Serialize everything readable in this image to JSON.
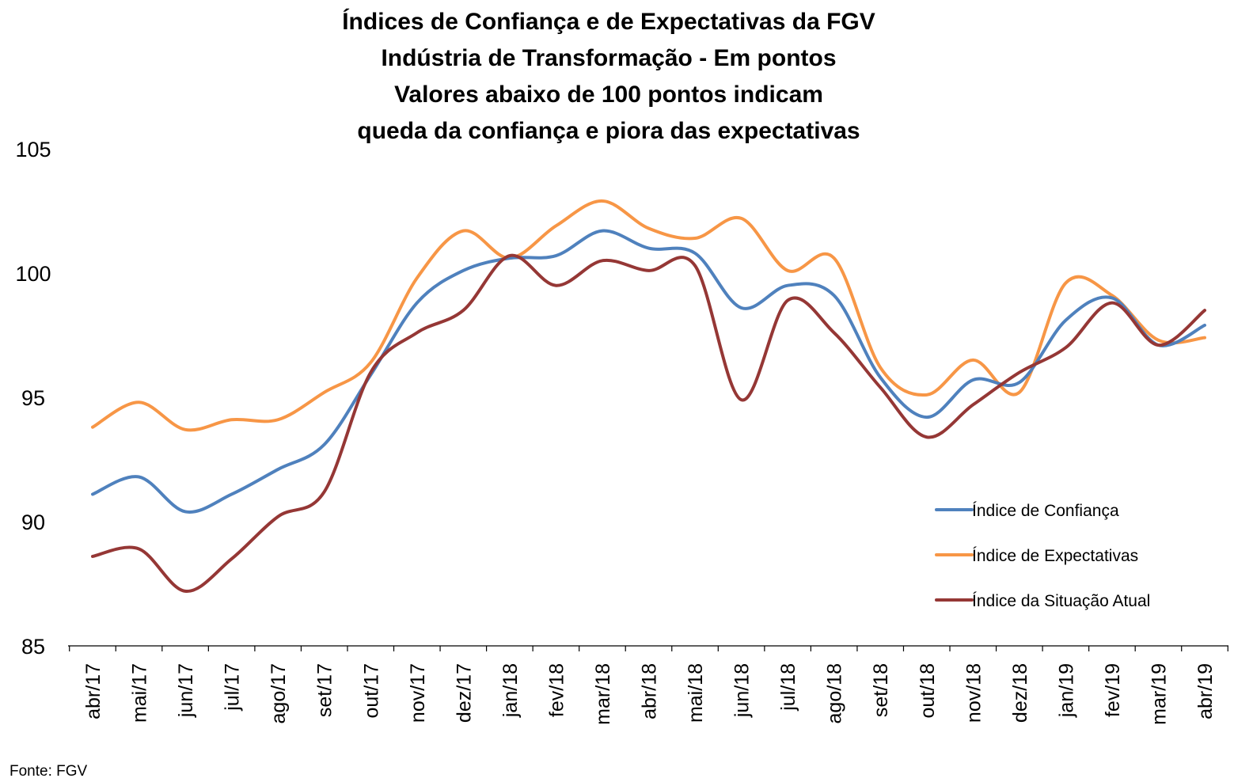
{
  "chart_data": {
    "type": "line",
    "title_lines": [
      "Índices de Confiança e de Expectativas da FGV",
      "Indústria de Transformação - Em pontos",
      "Valores abaixo de 100 pontos indicam",
      "queda da confiança e piora das expectativas"
    ],
    "categories": [
      "abr/17",
      "mai/17",
      "jun/17",
      "jul/17",
      "ago/17",
      "set/17",
      "out/17",
      "nov/17",
      "dez/17",
      "jan/18",
      "fev/18",
      "mar/18",
      "abr/18",
      "mai/18",
      "jun/18",
      "jul/18",
      "ago/18",
      "set/18",
      "out/18",
      "nov/18",
      "dez/18",
      "jan/19",
      "fev/19",
      "mar/19",
      "abr/19"
    ],
    "y_ticks": [
      "105",
      "100",
      "95",
      "90",
      "85"
    ],
    "ylim": [
      85,
      105
    ],
    "grid": false,
    "legend_position": "right",
    "series": [
      {
        "name": "Índice de Confiança",
        "color": "#4F81BD",
        "values": [
          91.1,
          91.8,
          90.4,
          91.1,
          92.1,
          93.1,
          95.9,
          98.8,
          100.1,
          100.6,
          100.7,
          101.7,
          101.0,
          100.8,
          98.6,
          99.5,
          99.1,
          95.8,
          94.2,
          95.7,
          95.6,
          98.1,
          99.0,
          97.1,
          97.9
        ]
      },
      {
        "name": "Índice de Expectativas",
        "color": "#F79646",
        "values": [
          93.8,
          94.8,
          93.7,
          94.1,
          94.1,
          95.2,
          96.4,
          99.8,
          101.7,
          100.6,
          101.9,
          102.9,
          101.8,
          101.4,
          102.2,
          100.1,
          100.6,
          96.2,
          95.1,
          96.5,
          95.2,
          99.6,
          99.1,
          97.3,
          97.4
        ]
      },
      {
        "name": "Índice da Situação Atual",
        "color": "#953735",
        "values": [
          88.6,
          88.9,
          87.2,
          88.5,
          90.2,
          91.2,
          96.0,
          97.6,
          98.5,
          100.7,
          99.5,
          100.5,
          100.1,
          100.3,
          94.9,
          98.9,
          97.6,
          95.4,
          93.4,
          94.7,
          96.0,
          97.0,
          98.8,
          97.1,
          98.5
        ]
      }
    ],
    "source": "Fonte: FGV"
  }
}
